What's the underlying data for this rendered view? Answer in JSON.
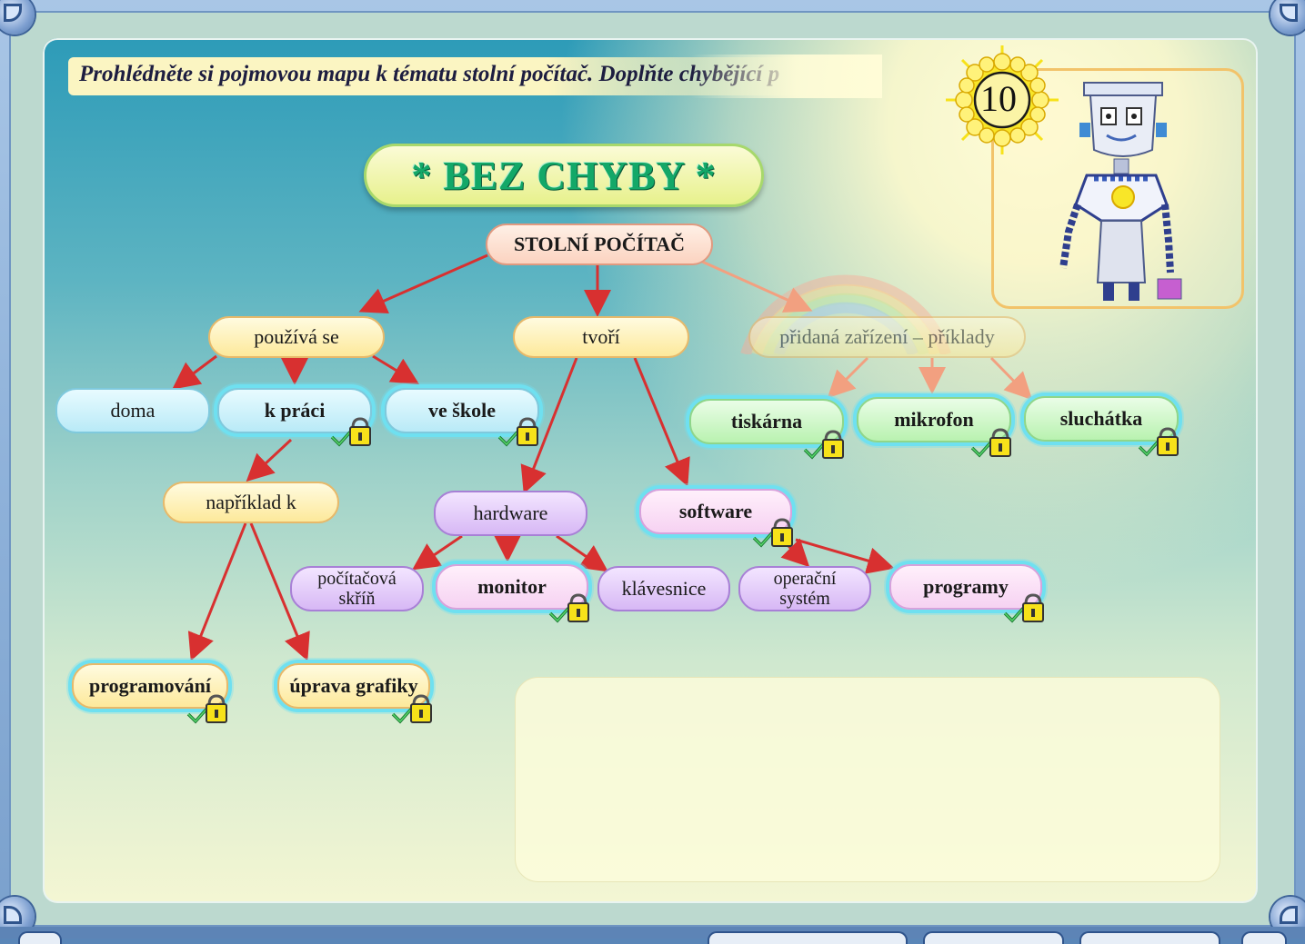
{
  "instruction": "Prohlédněte si pojmovou mapu k tématu stolní počítač. Doplňte chybějící p",
  "counter": "10",
  "title": "* BEZ CHYBY *",
  "concept_map": {
    "root": "STOLNÍ POČÍTAČ",
    "branches": {
      "uses": "používá se",
      "forms": "tvoří",
      "devices": "přidaná zařízení – příklady"
    },
    "nodes": {
      "home": "doma",
      "work": "k práci",
      "school": "ve škole",
      "example": "například k",
      "programming": "programování",
      "graphics": "úprava grafiky",
      "hardware": "hardware",
      "software": "software",
      "case": "počítačová skříň",
      "monitor": "monitor",
      "keyboard": "klávesnice",
      "os": "operační systém",
      "programs": "programy",
      "printer": "tiskárna",
      "microphone": "mikrofon",
      "headphones": "sluchátka"
    }
  },
  "colors": {
    "arrow": "#d83030",
    "title_text": "#13a868",
    "filled_glow": "#6fe0f0"
  }
}
